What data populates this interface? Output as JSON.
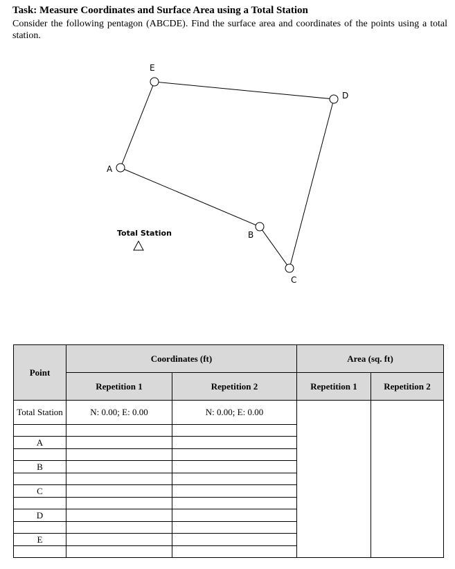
{
  "task": {
    "title": "Task: Measure Coordinates and Surface Area using a Total Station",
    "description": "Consider the following pentagon (ABCDE).  Find the surface area and coordinates of the points using a total station."
  },
  "diagram": {
    "points": [
      "A",
      "B",
      "C",
      "D",
      "E"
    ],
    "station_label": "Total Station"
  },
  "table": {
    "point_header": "Point",
    "coordinates_header": "Coordinates (ft)",
    "area_header": "Area (sq. ft)",
    "rep1": "Repetition 1",
    "rep2": "Repetition 2",
    "rows": [
      {
        "point": "Total Station",
        "rep1": "N: 0.00; E: 0.00",
        "rep2": "N: 0.00; E: 0.00"
      },
      {
        "point": "A",
        "rep1": "",
        "rep2": ""
      },
      {
        "point": "B",
        "rep1": "",
        "rep2": ""
      },
      {
        "point": "C",
        "rep1": "",
        "rep2": ""
      },
      {
        "point": "D",
        "rep1": "",
        "rep2": ""
      },
      {
        "point": "E",
        "rep1": "",
        "rep2": ""
      }
    ]
  }
}
